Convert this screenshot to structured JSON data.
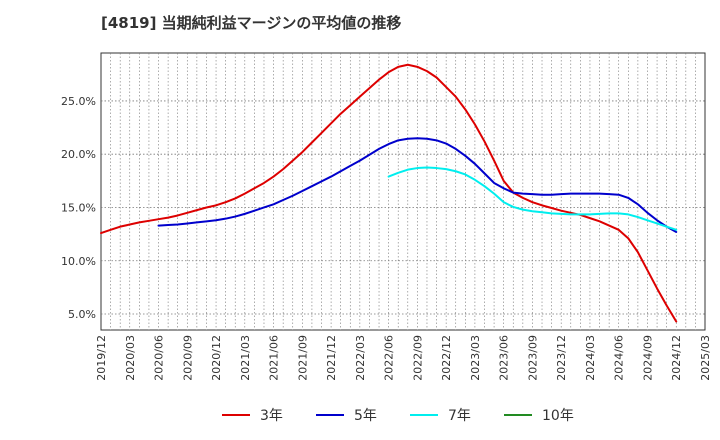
{
  "chart_data": {
    "type": "line",
    "title": "[4819]  当期純利益マージンの平均値の推移",
    "xlabel": "",
    "ylabel": "",
    "x_tick_labels": [
      "2019/12",
      "2020/03",
      "2020/06",
      "2020/09",
      "2020/12",
      "2021/03",
      "2021/06",
      "2021/09",
      "2021/12",
      "2022/03",
      "2022/06",
      "2022/09",
      "2022/12",
      "2023/03",
      "2023/06",
      "2023/09",
      "2023/12",
      "2024/03",
      "2024/06",
      "2024/09",
      "2024/12",
      "2025/03"
    ],
    "y_tick_labels": [
      "5.0%",
      "10.0%",
      "15.0%",
      "20.0%",
      "25.0%"
    ],
    "y_ticks": [
      5,
      10,
      15,
      20,
      25
    ],
    "ylim": [
      3.5,
      29.5
    ],
    "grid": true,
    "legend_position": "bottom",
    "series": [
      {
        "name": "3年",
        "color": "#dd0000",
        "x": [
          "2019/12",
          "2020/01",
          "2020/02",
          "2020/03",
          "2020/04",
          "2020/05",
          "2020/06",
          "2020/07",
          "2020/08",
          "2020/09",
          "2020/10",
          "2020/11",
          "2020/12",
          "2021/01",
          "2021/02",
          "2021/03",
          "2021/04",
          "2021/05",
          "2021/06",
          "2021/07",
          "2021/08",
          "2021/09",
          "2021/10",
          "2021/11",
          "2021/12",
          "2022/01",
          "2022/02",
          "2022/03",
          "2022/04",
          "2022/05",
          "2022/06",
          "2022/07",
          "2022/08",
          "2022/09",
          "2022/10",
          "2022/11",
          "2022/12",
          "2023/01",
          "2023/02",
          "2023/03",
          "2023/04",
          "2023/05",
          "2023/06",
          "2023/07",
          "2023/08",
          "2023/09",
          "2023/10",
          "2023/11",
          "2023/12",
          "2024/01",
          "2024/02",
          "2024/03",
          "2024/04",
          "2024/05",
          "2024/06",
          "2024/07",
          "2024/08",
          "2024/09",
          "2024/10",
          "2024/11",
          "2024/12"
        ],
        "values": [
          12.6,
          12.9,
          13.2,
          13.4,
          13.6,
          13.75,
          13.9,
          14.05,
          14.25,
          14.5,
          14.75,
          15.0,
          15.2,
          15.5,
          15.85,
          16.3,
          16.8,
          17.3,
          17.9,
          18.6,
          19.4,
          20.2,
          21.1,
          22.0,
          22.9,
          23.8,
          24.6,
          25.4,
          26.2,
          27.0,
          27.7,
          28.2,
          28.4,
          28.2,
          27.8,
          27.2,
          26.3,
          25.4,
          24.2,
          22.8,
          21.2,
          19.4,
          17.5,
          16.4,
          15.9,
          15.5,
          15.2,
          14.95,
          14.7,
          14.5,
          14.3,
          14.0,
          13.7,
          13.3,
          12.9,
          12.1,
          10.8,
          9.1,
          7.4,
          5.8,
          4.3
        ]
      },
      {
        "name": "5年",
        "color": "#0000cc",
        "x": [
          "2020/06",
          "2020/07",
          "2020/08",
          "2020/09",
          "2020/10",
          "2020/11",
          "2020/12",
          "2021/01",
          "2021/02",
          "2021/03",
          "2021/04",
          "2021/05",
          "2021/06",
          "2021/07",
          "2021/08",
          "2021/09",
          "2021/10",
          "2021/11",
          "2021/12",
          "2022/01",
          "2022/02",
          "2022/03",
          "2022/04",
          "2022/05",
          "2022/06",
          "2022/07",
          "2022/08",
          "2022/09",
          "2022/10",
          "2022/11",
          "2022/12",
          "2023/01",
          "2023/02",
          "2023/03",
          "2023/04",
          "2023/05",
          "2023/06",
          "2023/07",
          "2023/08",
          "2023/09",
          "2023/10",
          "2023/11",
          "2023/12",
          "2024/01",
          "2024/02",
          "2024/03",
          "2024/04",
          "2024/05",
          "2024/06",
          "2024/07",
          "2024/08",
          "2024/09",
          "2024/10",
          "2024/11",
          "2024/12"
        ],
        "values": [
          13.3,
          13.35,
          13.4,
          13.5,
          13.6,
          13.7,
          13.8,
          13.95,
          14.15,
          14.4,
          14.7,
          15.0,
          15.3,
          15.7,
          16.1,
          16.55,
          17.0,
          17.45,
          17.9,
          18.4,
          18.9,
          19.4,
          19.95,
          20.5,
          20.95,
          21.3,
          21.45,
          21.5,
          21.45,
          21.3,
          21.0,
          20.5,
          19.85,
          19.1,
          18.2,
          17.3,
          16.8,
          16.4,
          16.3,
          16.25,
          16.2,
          16.2,
          16.25,
          16.3,
          16.3,
          16.3,
          16.3,
          16.25,
          16.2,
          15.9,
          15.3,
          14.5,
          13.8,
          13.2,
          12.7
        ]
      },
      {
        "name": "7年",
        "color": "#00eeee",
        "x": [
          "2022/06",
          "2022/07",
          "2022/08",
          "2022/09",
          "2022/10",
          "2022/11",
          "2022/12",
          "2023/01",
          "2023/02",
          "2023/03",
          "2023/04",
          "2023/05",
          "2023/06",
          "2023/07",
          "2023/08",
          "2023/09",
          "2023/10",
          "2023/11",
          "2023/12",
          "2024/01",
          "2024/02",
          "2024/03",
          "2024/04",
          "2024/05",
          "2024/06",
          "2024/07",
          "2024/08",
          "2024/09",
          "2024/10",
          "2024/11",
          "2024/12"
        ],
        "values": [
          17.9,
          18.25,
          18.55,
          18.7,
          18.75,
          18.7,
          18.6,
          18.4,
          18.1,
          17.6,
          17.0,
          16.3,
          15.5,
          15.05,
          14.8,
          14.65,
          14.55,
          14.45,
          14.4,
          14.35,
          14.35,
          14.35,
          14.4,
          14.45,
          14.45,
          14.35,
          14.1,
          13.8,
          13.5,
          13.2,
          12.9
        ]
      },
      {
        "name": "10年",
        "color": "#228b22",
        "x": [],
        "values": []
      }
    ]
  }
}
